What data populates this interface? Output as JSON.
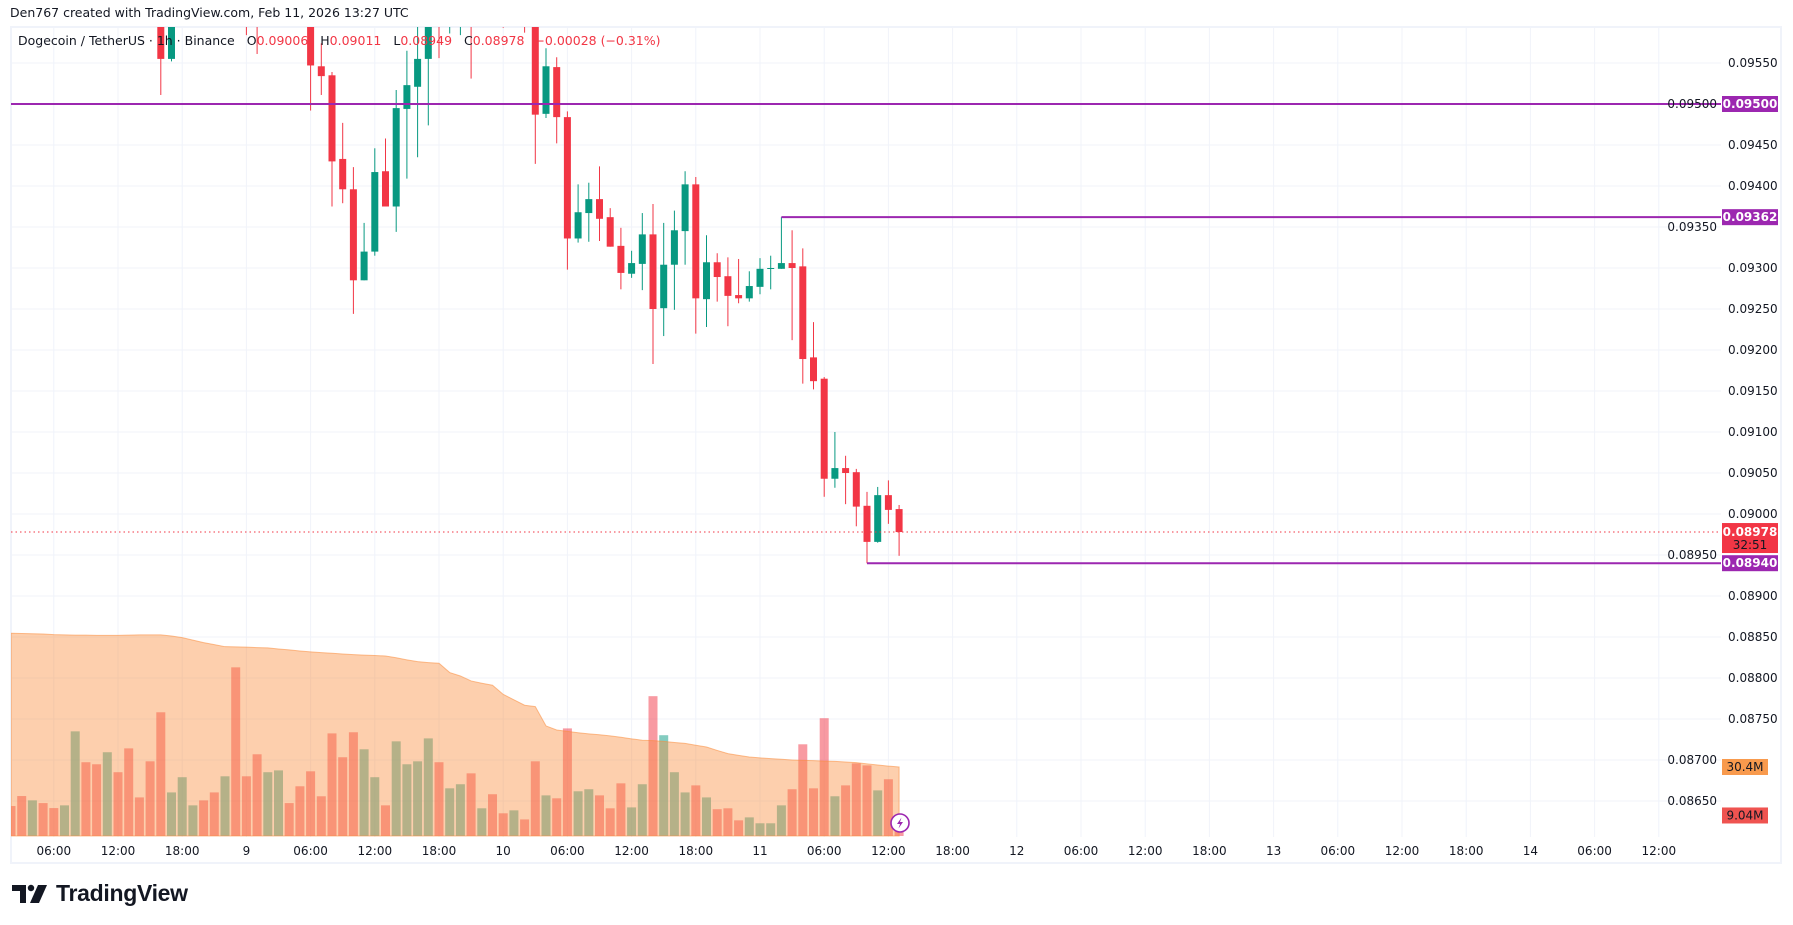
{
  "credit": "Den767 created with TradingView.com, Feb 11, 2026 13:27 UTC",
  "legend": {
    "symbol": "Dogecoin / TetherUS · 1h · Binance",
    "o_label": "O",
    "o": "0.09006",
    "h_label": "H",
    "h": "0.09011",
    "l_label": "L",
    "l": "0.08949",
    "c_label": "C",
    "c": "0.08978",
    "change": "−0.00028 (−0.31%)"
  },
  "logo": {
    "text": "TradingView"
  },
  "colors": {
    "up": "#089981",
    "down": "#f23645",
    "level": "#9c27b0",
    "volume_ma": "#fa8c3c",
    "grid": "#f0f3fa"
  },
  "chart_data": {
    "type": "candlestick",
    "title": "Dogecoin / TetherUS · 1h · Binance",
    "x_start": "2026-02-08T02:00",
    "interval": "1h",
    "ylim": [
      0.08605,
      0.09595
    ],
    "grid": true,
    "y_ticks": [
      "0.09550",
      "0.09500",
      "0.09450",
      "0.09400",
      "0.09350",
      "0.09300",
      "0.09250",
      "0.09200",
      "0.09150",
      "0.09100",
      "0.09050",
      "0.09000",
      "0.08950",
      "0.08900",
      "0.08850",
      "0.08800",
      "0.08750",
      "0.08700",
      "0.08650"
    ],
    "x_ticks": [
      "06:00",
      "12:00",
      "18:00",
      "9",
      "06:00",
      "12:00",
      "18:00",
      "10",
      "06:00",
      "12:00",
      "18:00",
      "11",
      "06:00",
      "12:00",
      "18:00",
      "12",
      "06:00",
      "12:00",
      "18:00",
      "13",
      "06:00",
      "12:00",
      "18:00",
      "14",
      "06:00",
      "12:00"
    ],
    "candles_ohlc": [
      null,
      null,
      null,
      null,
      null,
      null,
      null,
      null,
      null,
      null,
      null,
      null,
      null,
      null,
      [
        0.0962,
        0.0964,
        0.09511,
        0.09555
      ],
      [
        0.09555,
        0.0964,
        0.09552,
        0.0962
      ],
      null,
      null,
      null,
      null,
      null,
      null,
      [
        0.0962,
        0.0964,
        0.09584,
        0.096
      ],
      [
        0.0962,
        0.0964,
        0.09561,
        0.096
      ],
      null,
      null,
      null,
      null,
      [
        0.0962,
        0.0964,
        0.09492,
        0.09547
      ],
      [
        0.09546,
        0.09574,
        0.09511,
        0.09534
      ],
      [
        0.09535,
        0.09539,
        0.09375,
        0.0943
      ],
      [
        0.09433,
        0.09477,
        0.09379,
        0.09396
      ],
      [
        0.09396,
        0.09423,
        0.09244,
        0.09285
      ],
      [
        0.09285,
        0.09355,
        0.09285,
        0.0932
      ],
      [
        0.0932,
        0.09446,
        0.09315,
        0.09417
      ],
      [
        0.09418,
        0.09458,
        0.09375,
        0.09375
      ],
      [
        0.09375,
        0.09517,
        0.09344,
        0.09495
      ],
      [
        0.09494,
        0.09565,
        0.09409,
        0.09523
      ],
      [
        0.09521,
        0.0961,
        0.09435,
        0.09555
      ],
      [
        0.09555,
        0.0963,
        0.09474,
        0.0961
      ],
      [
        0.0963,
        0.0965,
        0.09556,
        0.0961
      ],
      [
        0.0961,
        0.0965,
        0.09586,
        0.0963
      ],
      [
        0.0961,
        0.0965,
        0.09584,
        0.0963
      ],
      [
        0.0963,
        0.0965,
        0.09531,
        0.0961
      ],
      null,
      null,
      [
        0.0963,
        0.0965,
        0.09593,
        0.0961
      ],
      null,
      [
        0.0963,
        0.0965,
        0.09587,
        0.0961
      ],
      [
        0.0962,
        0.0964,
        0.09427,
        0.09487
      ],
      [
        0.09488,
        0.09568,
        0.09483,
        0.09546
      ],
      [
        0.09545,
        0.09557,
        0.09452,
        0.09484
      ],
      [
        0.09484,
        0.09491,
        0.09298,
        0.09336
      ],
      [
        0.09336,
        0.09402,
        0.09331,
        0.09368
      ],
      [
        0.09367,
        0.09404,
        0.09332,
        0.09384
      ],
      [
        0.09384,
        0.09424,
        0.09333,
        0.0936
      ],
      [
        0.09362,
        0.09373,
        0.09326,
        0.09326
      ],
      [
        0.09327,
        0.09349,
        0.09274,
        0.09294
      ],
      [
        0.09293,
        0.09321,
        0.09288,
        0.09306
      ],
      [
        0.09305,
        0.09367,
        0.09273,
        0.09341
      ],
      [
        0.09341,
        0.09378,
        0.09183,
        0.0925
      ],
      [
        0.09251,
        0.09355,
        0.09217,
        0.09304
      ],
      [
        0.09304,
        0.0937,
        0.09249,
        0.09346
      ],
      [
        0.09345,
        0.09418,
        0.09304,
        0.09402
      ],
      [
        0.09402,
        0.09411,
        0.0922,
        0.09263
      ],
      [
        0.09262,
        0.0934,
        0.09228,
        0.09307
      ],
      [
        0.09307,
        0.09318,
        0.09259,
        0.09289
      ],
      [
        0.0929,
        0.09313,
        0.09229,
        0.09266
      ],
      [
        0.09267,
        0.09311,
        0.09257,
        0.09263
      ],
      [
        0.09263,
        0.09296,
        0.09259,
        0.09278
      ],
      [
        0.09277,
        0.09312,
        0.09268,
        0.09299
      ],
      [
        0.09299,
        0.09315,
        0.09274,
        0.093
      ],
      [
        0.09299,
        0.09362,
        0.09299,
        0.09306
      ],
      [
        0.09306,
        0.09346,
        0.09212,
        0.093
      ],
      [
        0.09302,
        0.09324,
        0.09159,
        0.09189
      ],
      [
        0.09191,
        0.09234,
        0.09152,
        0.09162
      ],
      [
        0.09165,
        0.09167,
        0.09021,
        0.09043
      ],
      [
        0.09043,
        0.091,
        0.09032,
        0.09056
      ],
      [
        0.09056,
        0.09071,
        0.09012,
        0.0905
      ],
      [
        0.09051,
        0.09055,
        0.08985,
        0.09009
      ],
      [
        0.0901,
        0.09027,
        0.0894,
        0.08966
      ],
      [
        0.08966,
        0.09033,
        0.08965,
        0.09023
      ],
      [
        0.09023,
        0.09041,
        0.08988,
        0.09005
      ],
      [
        0.09006,
        0.09011,
        0.08949,
        0.08978
      ]
    ],
    "volume_millions": [
      13.2,
      17.6,
      15.7,
      14.5,
      12.3,
      13.5,
      46.1,
      32.5,
      31.6,
      36.9,
      28.1,
      38.6,
      17.0,
      32.9,
      54.5,
      19.2,
      25.9,
      13.5,
      15.7,
      19.2,
      26.3,
      74.3,
      26.3,
      36.0,
      28.1,
      28.9,
      14.5,
      21.9,
      28.5,
      17.5,
      45.2,
      34.7,
      45.7,
      38.2,
      25.9,
      13.5,
      41.7,
      31.6,
      32.9,
      43.0,
      32.5,
      21.0,
      22.8,
      27.6,
      12.2,
      18.4,
      10.0,
      11.3,
      7.3,
      32.9,
      17.9,
      16.6,
      47.4,
      19.7,
      20.6,
      17.9,
      12.2,
      23.2,
      12.6,
      22.8,
      61.6,
      44.4,
      28.1,
      19.2,
      22.3,
      17.0,
      11.8,
      12.2,
      6.9,
      8.2,
      5.6,
      5.6,
      13.5,
      20.6,
      40.4,
      21.0,
      51.9,
      17.5,
      22.3,
      32.0,
      31.1,
      20.1,
      25.0,
      9.04
    ],
    "volume_direction": [
      "d",
      "d",
      "u",
      "d",
      "d",
      "u",
      "u",
      "d",
      "d",
      "u",
      "d",
      "d",
      "d",
      "d",
      "d",
      "u",
      "u",
      "u",
      "d",
      "d",
      "u",
      "d",
      "d",
      "d",
      "u",
      "u",
      "d",
      "d",
      "d",
      "d",
      "d",
      "d",
      "d",
      "u",
      "u",
      "d",
      "u",
      "u",
      "u",
      "u",
      "d",
      "u",
      "u",
      "d",
      "u",
      "d",
      "d",
      "u",
      "d",
      "d",
      "u",
      "d",
      "d",
      "u",
      "u",
      "d",
      "d",
      "d",
      "u",
      "u",
      "d",
      "u",
      "u",
      "u",
      "d",
      "u",
      "d",
      "d",
      "d",
      "u",
      "u",
      "u",
      "u",
      "d",
      "d",
      "d",
      "d",
      "u",
      "d",
      "d",
      "d",
      "u",
      "d",
      "d"
    ],
    "volume_ma_millions": [
      89.3,
      89.2,
      89.1,
      89.0,
      88.7,
      88.6,
      88.5,
      88.5,
      88.4,
      88.4,
      88.4,
      88.5,
      88.6,
      88.6,
      88.6,
      88.1,
      87.4,
      86.3,
      85.2,
      84.3,
      83.4,
      83.3,
      83.2,
      83.0,
      82.9,
      82.4,
      82.0,
      81.5,
      81.1,
      80.8,
      80.5,
      80.2,
      79.9,
      79.7,
      79.5,
      79.3,
      78.5,
      77.6,
      76.8,
      76.4,
      76.1,
      72.0,
      70.5,
      68.3,
      67.3,
      66.4,
      62.4,
      60.0,
      57.6,
      57.0,
      48.5,
      46.7,
      46.1,
      45.5,
      45.0,
      44.6,
      44.1,
      43.5,
      42.8,
      42.2,
      42.0,
      41.7,
      41.2,
      40.8,
      40.0,
      39.2,
      37.7,
      36.3,
      35.5,
      34.8,
      34.4,
      34.1,
      33.8,
      33.5,
      33.3,
      33.2,
      33.0,
      32.9,
      32.6,
      32.3,
      31.8,
      31.3,
      30.8,
      30.4
    ],
    "levels": [
      {
        "price": 0.095,
        "label": "0.09500",
        "start": null
      },
      {
        "price": 0.09362,
        "label": "0.09362",
        "start": "2026-02-11T02:00"
      },
      {
        "price": 0.0894,
        "label": "0.08940",
        "start": "2026-02-11T10:00"
      }
    ],
    "last_price": {
      "price": 0.08978,
      "label": "0.08978",
      "countdown": "32:51"
    },
    "volume_ma_label": "30.4M",
    "volume_last_label": "9.04M"
  }
}
